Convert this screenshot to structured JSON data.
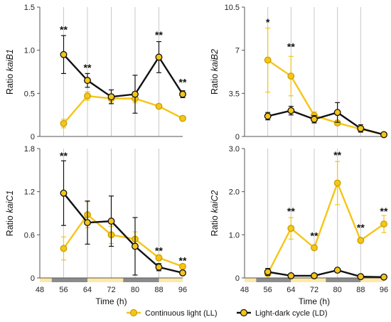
{
  "colors": {
    "ll": "#f5c518",
    "ld": "#111111",
    "light_bar": "#fde9a8",
    "dark_bar": "#8c8c8c",
    "grid": "#c8c8c8"
  },
  "legend": {
    "ll": "Continuous light (LL)",
    "ld": "Light-dark cycle (LD)"
  },
  "chart_data": [
    {
      "type": "line",
      "panel": "top-left",
      "ylabel_prefix": "Ratio ",
      "ylabel_gene": "kaiB1",
      "ylim": [
        0,
        1.5
      ],
      "yticks": [
        "0",
        "0.5",
        "1.0",
        "1.5"
      ],
      "ytick_values": [
        0,
        0.5,
        1.0,
        1.5
      ],
      "xlim": [
        48,
        96
      ],
      "xticks": [],
      "xlabel": "",
      "x": [
        56,
        64,
        72,
        80,
        88,
        96
      ],
      "series": [
        {
          "name": "Continuous light (LL)",
          "key": "ll",
          "values": [
            0.15,
            0.47,
            0.44,
            0.44,
            0.35,
            0.21
          ],
          "err": [
            0.05,
            0.05,
            0.05,
            0.05,
            0.02,
            0.02
          ]
        },
        {
          "name": "Light-dark cycle (LD)",
          "key": "ld",
          "values": [
            0.95,
            0.65,
            0.46,
            0.49,
            0.92,
            0.49
          ],
          "err": [
            0.22,
            0.08,
            0.08,
            0.22,
            0.18,
            0.04
          ]
        }
      ],
      "significance": [
        {
          "x": 56,
          "y": 1.24,
          "text": "**"
        },
        {
          "x": 64,
          "y": 0.8,
          "text": "**"
        },
        {
          "x": 88,
          "y": 1.18,
          "text": "**"
        },
        {
          "x": 96,
          "y": 0.63,
          "text": "**"
        }
      ],
      "show_bar": false
    },
    {
      "type": "line",
      "panel": "top-right",
      "ylabel_prefix": "Ratio ",
      "ylabel_gene": "kaiB2",
      "ylim": [
        0,
        10.5
      ],
      "yticks": [
        "0",
        "3.5",
        "7",
        "10.5"
      ],
      "ytick_values": [
        0,
        3.5,
        7,
        10.5
      ],
      "xlim": [
        48,
        96
      ],
      "xticks": [],
      "xlabel": "",
      "x": [
        56,
        64,
        72,
        80,
        88,
        96
      ],
      "series": [
        {
          "name": "Continuous light (LL)",
          "key": "ll",
          "values": [
            6.2,
            4.9,
            1.7,
            1.1,
            0.6,
            0.15
          ],
          "err": [
            2.6,
            1.6,
            0.3,
            0.2,
            0.2,
            0.05
          ]
        },
        {
          "name": "Light-dark cycle (LD)",
          "key": "ld",
          "values": [
            1.65,
            2.1,
            1.4,
            1.95,
            0.65,
            0.15
          ],
          "err": [
            0.3,
            0.35,
            0.3,
            0.8,
            0.3,
            0.05
          ]
        }
      ],
      "significance": [
        {
          "x": 56,
          "y": 9.3,
          "text": "*"
        },
        {
          "x": 64,
          "y": 7.3,
          "text": "**"
        }
      ],
      "show_bar": false
    },
    {
      "type": "line",
      "panel": "bottom-left",
      "ylabel_prefix": "Ratio ",
      "ylabel_gene": "kaiC1",
      "ylim": [
        0,
        1.8
      ],
      "yticks": [
        "0",
        "0.6",
        "1.2",
        "1.8"
      ],
      "ytick_values": [
        0,
        0.6,
        1.2,
        1.8
      ],
      "xlim": [
        48,
        96
      ],
      "xticks": [
        "48",
        "56",
        "64",
        "72",
        "80",
        "88",
        "96"
      ],
      "xtick_values": [
        48,
        56,
        64,
        72,
        80,
        88,
        96
      ],
      "xlabel": "Time (h)",
      "x": [
        56,
        64,
        72,
        80,
        88,
        96
      ],
      "series": [
        {
          "name": "Continuous light (LL)",
          "key": "ll",
          "values": [
            0.41,
            0.88,
            0.6,
            0.54,
            0.28,
            0.16
          ],
          "err": [
            0.16,
            0.18,
            0.12,
            0.1,
            0.04,
            0.03
          ]
        },
        {
          "name": "Light-dark cycle (LD)",
          "key": "ld",
          "values": [
            1.18,
            0.77,
            0.79,
            0.44,
            0.15,
            0.07
          ],
          "err": [
            0.45,
            0.3,
            0.35,
            0.4,
            0.05,
            0.02
          ]
        }
      ],
      "significance": [
        {
          "x": 56,
          "y": 1.7,
          "text": "**"
        },
        {
          "x": 88,
          "y": 0.38,
          "text": "**"
        },
        {
          "x": 96,
          "y": 0.24,
          "text": "**"
        }
      ],
      "show_bar": true
    },
    {
      "type": "line",
      "panel": "bottom-right",
      "ylabel_prefix": "Ratio ",
      "ylabel_gene": "kaiC2",
      "ylim": [
        0,
        3.0
      ],
      "yticks": [
        "0",
        "1.0",
        "2.0",
        "3.0"
      ],
      "ytick_values": [
        0,
        1.0,
        2.0,
        3.0
      ],
      "xlim": [
        48,
        96
      ],
      "xticks": [
        "48",
        "56",
        "64",
        "72",
        "80",
        "88",
        "96"
      ],
      "xtick_values": [
        48,
        56,
        64,
        72,
        80,
        88,
        96
      ],
      "xlabel": "Time (h)",
      "x": [
        56,
        64,
        72,
        80,
        88,
        96
      ],
      "series": [
        {
          "name": "Continuous light (LL)",
          "key": "ll",
          "values": [
            0.1,
            1.15,
            0.7,
            2.2,
            0.87,
            1.25
          ],
          "err": [
            0.05,
            0.25,
            0.05,
            0.5,
            0.05,
            0.2
          ]
        },
        {
          "name": "Light-dark cycle (LD)",
          "key": "ld",
          "values": [
            0.14,
            0.05,
            0.05,
            0.18,
            0.03,
            0.02
          ],
          "err": [
            0.08,
            0.02,
            0.02,
            0.04,
            0.02,
            0.01
          ]
        }
      ],
      "significance": [
        {
          "x": 64,
          "y": 1.55,
          "text": "**"
        },
        {
          "x": 72,
          "y": 0.98,
          "text": "**"
        },
        {
          "x": 80,
          "y": 2.85,
          "text": "**"
        },
        {
          "x": 88,
          "y": 1.17,
          "text": "**"
        },
        {
          "x": 96,
          "y": 1.55,
          "text": "**"
        }
      ],
      "show_bar": true
    }
  ],
  "light_dark_bar": [
    {
      "from": 48,
      "to": 52,
      "phase": "light"
    },
    {
      "from": 52,
      "to": 64,
      "phase": "dark"
    },
    {
      "from": 64,
      "to": 76,
      "phase": "light"
    },
    {
      "from": 76,
      "to": 88,
      "phase": "dark"
    },
    {
      "from": 88,
      "to": 96,
      "phase": "light"
    }
  ]
}
